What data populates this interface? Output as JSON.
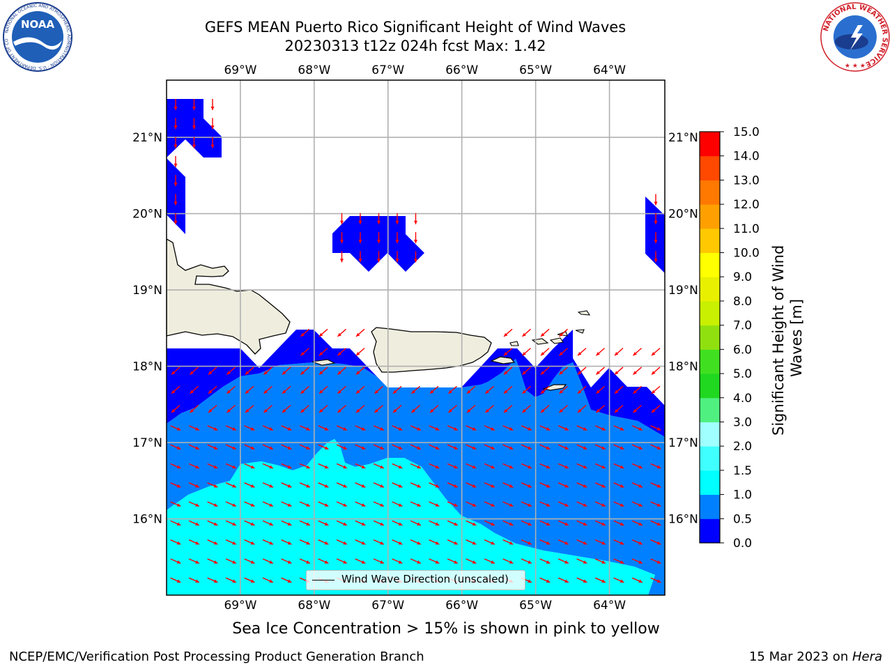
{
  "title": {
    "line1": "GEFS MEAN Puerto Rico Significant Height of Wind Waves",
    "line2": "20230313 t12z 024h fcst   Max: 1.42"
  },
  "map": {
    "lon_range": [
      -70.0,
      -63.25
    ],
    "lat_range": [
      15.0,
      21.75
    ],
    "lon_ticks": [
      {
        "value": -69,
        "label": "69°W"
      },
      {
        "value": -68,
        "label": "68°W"
      },
      {
        "value": -67,
        "label": "67°W"
      },
      {
        "value": -66,
        "label": "66°W"
      },
      {
        "value": -65,
        "label": "65°W"
      },
      {
        "value": -64,
        "label": "64°W"
      }
    ],
    "lat_ticks": [
      {
        "value": 21,
        "label": "21°N"
      },
      {
        "value": 20,
        "label": "20°N"
      },
      {
        "value": 19,
        "label": "19°N"
      },
      {
        "value": 18,
        "label": "18°N"
      },
      {
        "value": 17,
        "label": "17°N"
      },
      {
        "value": 16,
        "label": "16°N"
      }
    ],
    "gridlines": true,
    "land_color": "#efedde",
    "arrow_color": "#ff0000",
    "legend_label": "Wind Wave Direction (unscaled)"
  },
  "colorbar": {
    "label": "Significant Height of Wind Waves [m]",
    "label_line1": "Significant Height of Wind",
    "label_line2": "Waves [m]",
    "levels": [
      {
        "value": 0.0,
        "label": "0.0"
      },
      {
        "value": 0.5,
        "label": "0.5"
      },
      {
        "value": 1.0,
        "label": "1.0"
      },
      {
        "value": 1.5,
        "label": "1.5"
      },
      {
        "value": 2.0,
        "label": "2.0"
      },
      {
        "value": 3.0,
        "label": "3.0"
      },
      {
        "value": 4.0,
        "label": "4.0"
      },
      {
        "value": 5.0,
        "label": "5.0"
      },
      {
        "value": 6.0,
        "label": "6.0"
      },
      {
        "value": 7.0,
        "label": "7.0"
      },
      {
        "value": 8.0,
        "label": "8.0"
      },
      {
        "value": 9.0,
        "label": "9.0"
      },
      {
        "value": 10.0,
        "label": "10.0"
      },
      {
        "value": 11.0,
        "label": "11.0"
      },
      {
        "value": 12.0,
        "label": "12.0"
      },
      {
        "value": 13.0,
        "label": "13.0"
      },
      {
        "value": 14.0,
        "label": "14.0"
      },
      {
        "value": 15.0,
        "label": "15.0"
      }
    ],
    "colors": [
      "#0000ff",
      "#0080ff",
      "#00ffff",
      "#40ffff",
      "#a0ffff",
      "#50f080",
      "#20d820",
      "#40e020",
      "#90e010",
      "#c8f000",
      "#e8f000",
      "#ffff00",
      "#ffc800",
      "#ffa000",
      "#ff7800",
      "#ff4800",
      "#ff0000"
    ]
  },
  "sea_ice_note": "Sea Ice Concentration > 15% is shown in pink to yellow",
  "footer": {
    "left": "NCEP/EMC/Verification Post Processing Product Generation Branch",
    "right_date": "15 Mar 2023 on ",
    "right_host": "Hera"
  },
  "logos": {
    "noaa_text": "NOAA",
    "noaa_ring_text": "NATIONAL OCEANIC AND ATMOSPHERIC ADMINISTRATION · U.S. DEPARTMENT OF COMMERCE",
    "nws_ring_text": "NATIONAL WEATHER SERVICE"
  }
}
